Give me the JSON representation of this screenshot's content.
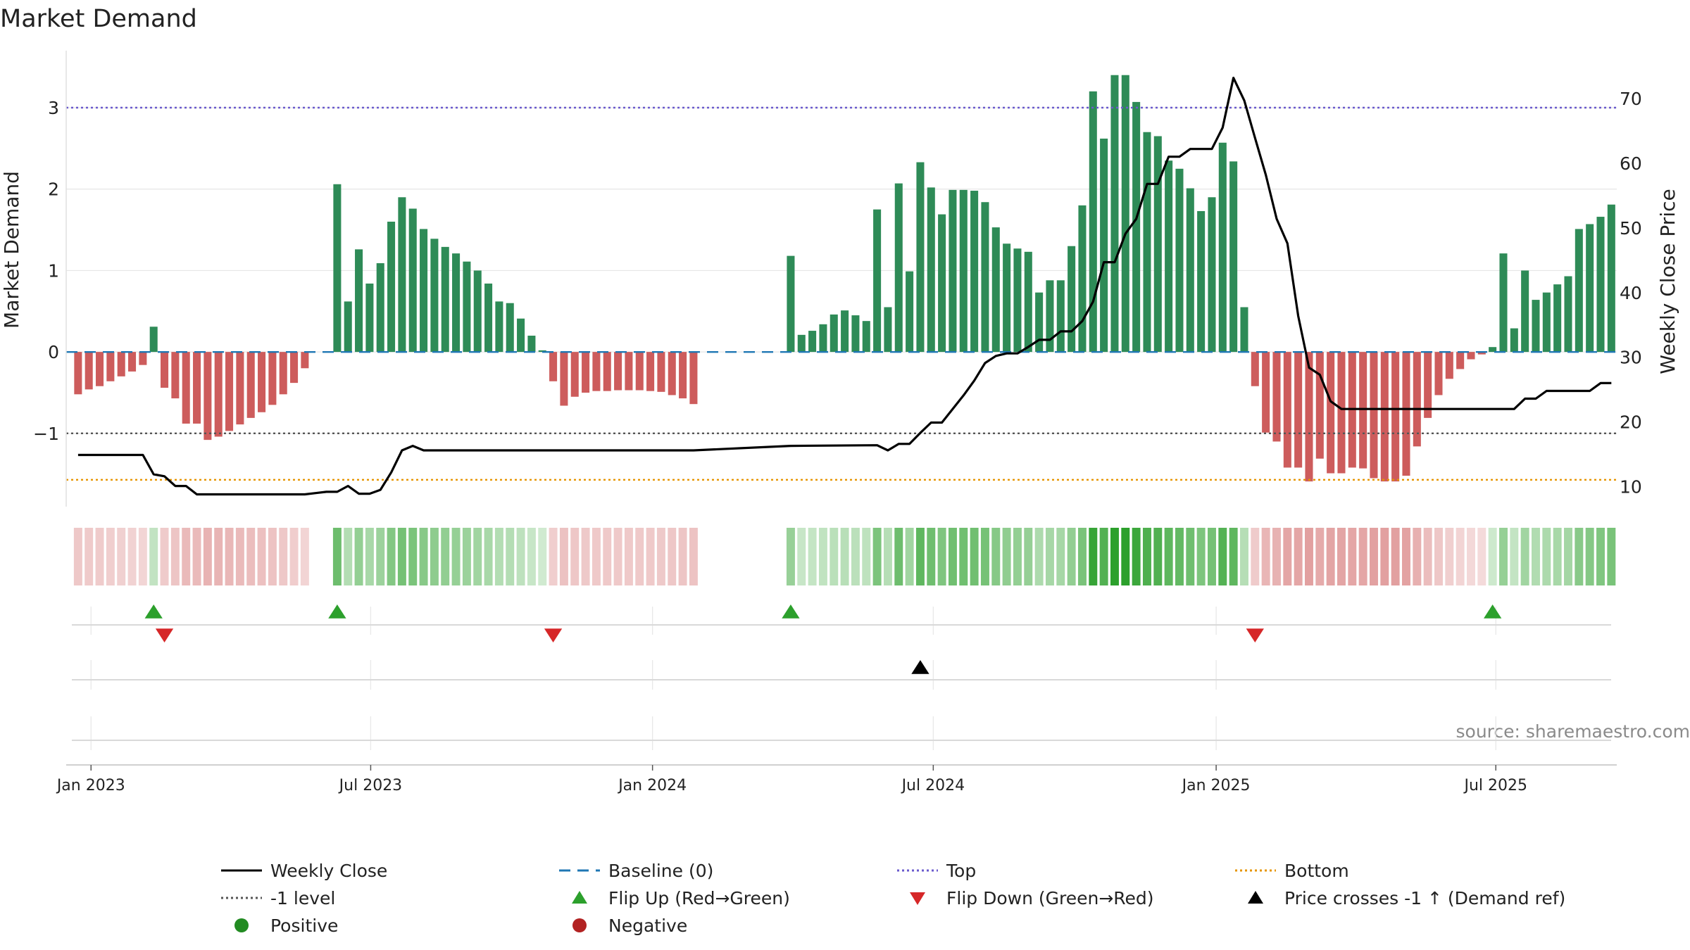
{
  "chart_data": {
    "type": "bar",
    "title": "Market Demand",
    "source": "source: sharemaestro.com",
    "ylabel_left": "Market Demand",
    "ylabel_right": "Weekly Close Price",
    "ylim_left": [
      -1.9,
      3.7
    ],
    "ylim_right": [
      6.9,
      77.4
    ],
    "left_ticks": [
      {
        "v": 3,
        "label": "3"
      },
      {
        "v": 2,
        "label": "2"
      },
      {
        "v": 1,
        "label": "1"
      },
      {
        "v": 0,
        "label": "0"
      },
      {
        "v": -1,
        "label": "−1"
      }
    ],
    "right_ticks": [
      {
        "v": 70,
        "label": "70"
      },
      {
        "v": 60,
        "label": "60"
      },
      {
        "v": 50,
        "label": "50"
      },
      {
        "v": 40,
        "label": "40"
      },
      {
        "v": 30,
        "label": "30"
      },
      {
        "v": 20,
        "label": "20"
      },
      {
        "v": 10,
        "label": "10"
      }
    ],
    "x_ticks": [
      {
        "w": 1.2,
        "label": "Jan 2023"
      },
      {
        "w": 27.1,
        "label": "Jul 2023"
      },
      {
        "w": 53.2,
        "label": "Jan 2024"
      },
      {
        "w": 79.2,
        "label": "Jul 2024"
      },
      {
        "w": 105.4,
        "label": "Jan 2025"
      },
      {
        "w": 131.3,
        "label": "Jul 2025"
      }
    ],
    "week_range": [
      -1.1,
      142.5
    ],
    "reference_lines": {
      "top": 3.0,
      "bottom": -1.57,
      "minus_one": -1.0,
      "baseline": 0
    },
    "demand": [
      [
        0,
        -0.52
      ],
      [
        1,
        -0.46
      ],
      [
        2,
        -0.42
      ],
      [
        3,
        -0.36
      ],
      [
        4,
        -0.3
      ],
      [
        5,
        -0.24
      ],
      [
        6,
        -0.16
      ],
      [
        7,
        0.31
      ],
      [
        8,
        -0.44
      ],
      [
        9,
        -0.57
      ],
      [
        10,
        -0.88
      ],
      [
        11,
        -0.88
      ],
      [
        12,
        -1.08
      ],
      [
        13,
        -1.04
      ],
      [
        14,
        -0.97
      ],
      [
        15,
        -0.89
      ],
      [
        16,
        -0.81
      ],
      [
        17,
        -0.74
      ],
      [
        18,
        -0.65
      ],
      [
        19,
        -0.52
      ],
      [
        20,
        -0.38
      ],
      [
        21,
        -0.2
      ],
      [
        24,
        2.06
      ],
      [
        25,
        0.62
      ],
      [
        26,
        1.26
      ],
      [
        27,
        0.84
      ],
      [
        28,
        1.09
      ],
      [
        29,
        1.6
      ],
      [
        30,
        1.9
      ],
      [
        31,
        1.76
      ],
      [
        32,
        1.51
      ],
      [
        33,
        1.39
      ],
      [
        34,
        1.29
      ],
      [
        35,
        1.21
      ],
      [
        36,
        1.11
      ],
      [
        37,
        1.0
      ],
      [
        38,
        0.84
      ],
      [
        39,
        0.62
      ],
      [
        40,
        0.6
      ],
      [
        41,
        0.41
      ],
      [
        42,
        0.2
      ],
      [
        43,
        0.02
      ],
      [
        44,
        -0.36
      ],
      [
        45,
        -0.66
      ],
      [
        46,
        -0.55
      ],
      [
        47,
        -0.5
      ],
      [
        48,
        -0.48
      ],
      [
        49,
        -0.48
      ],
      [
        50,
        -0.47
      ],
      [
        51,
        -0.47
      ],
      [
        52,
        -0.47
      ],
      [
        53,
        -0.48
      ],
      [
        54,
        -0.49
      ],
      [
        55,
        -0.53
      ],
      [
        56,
        -0.57
      ],
      [
        57,
        -0.64
      ],
      [
        66,
        1.18
      ],
      [
        67,
        0.21
      ],
      [
        68,
        0.26
      ],
      [
        69,
        0.34
      ],
      [
        70,
        0.46
      ],
      [
        71,
        0.51
      ],
      [
        72,
        0.45
      ],
      [
        73,
        0.38
      ],
      [
        74,
        1.75
      ],
      [
        75,
        0.55
      ],
      [
        76,
        2.07
      ],
      [
        77,
        0.99
      ],
      [
        78,
        2.33
      ],
      [
        79,
        2.02
      ],
      [
        80,
        1.69
      ],
      [
        81,
        1.99
      ],
      [
        82,
        1.99
      ],
      [
        83,
        1.98
      ],
      [
        84,
        1.84
      ],
      [
        85,
        1.53
      ],
      [
        86,
        1.33
      ],
      [
        87,
        1.27
      ],
      [
        88,
        1.23
      ],
      [
        89,
        0.73
      ],
      [
        90,
        0.88
      ],
      [
        91,
        0.88
      ],
      [
        92,
        1.3
      ],
      [
        93,
        1.8
      ],
      [
        94,
        3.2
      ],
      [
        95,
        2.62
      ],
      [
        96,
        3.4
      ],
      [
        97,
        3.4
      ],
      [
        98,
        3.07
      ],
      [
        99,
        2.7
      ],
      [
        100,
        2.65
      ],
      [
        101,
        2.35
      ],
      [
        102,
        2.25
      ],
      [
        103,
        2.01
      ],
      [
        104,
        1.73
      ],
      [
        105,
        1.9
      ],
      [
        106,
        2.57
      ],
      [
        107,
        2.34
      ],
      [
        108,
        0.55
      ],
      [
        109,
        -0.42
      ],
      [
        110,
        -0.99
      ],
      [
        111,
        -1.1
      ],
      [
        112,
        -1.42
      ],
      [
        113,
        -1.42
      ],
      [
        114,
        -1.59
      ],
      [
        115,
        -1.31
      ],
      [
        116,
        -1.49
      ],
      [
        117,
        -1.49
      ],
      [
        118,
        -1.42
      ],
      [
        119,
        -1.43
      ],
      [
        120,
        -1.55
      ],
      [
        121,
        -1.59
      ],
      [
        122,
        -1.59
      ],
      [
        123,
        -1.52
      ],
      [
        124,
        -1.16
      ],
      [
        125,
        -0.81
      ],
      [
        126,
        -0.53
      ],
      [
        127,
        -0.33
      ],
      [
        128,
        -0.21
      ],
      [
        129,
        -0.09
      ],
      [
        130,
        -0.03
      ],
      [
        131,
        0.06
      ],
      [
        132,
        1.21
      ],
      [
        133,
        0.29
      ],
      [
        134,
        1.0
      ],
      [
        135,
        0.64
      ],
      [
        136,
        0.73
      ],
      [
        137,
        0.83
      ],
      [
        138,
        0.93
      ],
      [
        139,
        1.51
      ],
      [
        140,
        1.57
      ],
      [
        141,
        1.66
      ],
      [
        142,
        1.81
      ]
    ],
    "weekly_close": [
      [
        0,
        14.9
      ],
      [
        1,
        14.9
      ],
      [
        2,
        14.9
      ],
      [
        3,
        14.9
      ],
      [
        4,
        14.9
      ],
      [
        5,
        14.9
      ],
      [
        6,
        14.9
      ],
      [
        7,
        11.9
      ],
      [
        8,
        11.6
      ],
      [
        9,
        10.1
      ],
      [
        10,
        10.1
      ],
      [
        11,
        8.8
      ],
      [
        12,
        8.8
      ],
      [
        13,
        8.8
      ],
      [
        14,
        8.8
      ],
      [
        15,
        8.8
      ],
      [
        16,
        8.8
      ],
      [
        17,
        8.8
      ],
      [
        18,
        8.8
      ],
      [
        19,
        8.8
      ],
      [
        20,
        8.8
      ],
      [
        21,
        8.8
      ],
      [
        22,
        9.0
      ],
      [
        23,
        9.2
      ],
      [
        24,
        9.2
      ],
      [
        25,
        10.1
      ],
      [
        26,
        8.9
      ],
      [
        27,
        8.9
      ],
      [
        28,
        9.5
      ],
      [
        29,
        12.2
      ],
      [
        30,
        15.6
      ],
      [
        31,
        16.3
      ],
      [
        32,
        15.6
      ],
      [
        33,
        15.6
      ],
      [
        34,
        15.6
      ],
      [
        35,
        15.6
      ],
      [
        36,
        15.6
      ],
      [
        37,
        15.6
      ],
      [
        38,
        15.6
      ],
      [
        39,
        15.6
      ],
      [
        40,
        15.6
      ],
      [
        41,
        15.6
      ],
      [
        42,
        15.6
      ],
      [
        43,
        15.6
      ],
      [
        44,
        15.6
      ],
      [
        45,
        15.6
      ],
      [
        46,
        15.6
      ],
      [
        47,
        15.6
      ],
      [
        48,
        15.6
      ],
      [
        49,
        15.6
      ],
      [
        50,
        15.6
      ],
      [
        51,
        15.6
      ],
      [
        52,
        15.6
      ],
      [
        53,
        15.6
      ],
      [
        54,
        15.6
      ],
      [
        55,
        15.6
      ],
      [
        56,
        15.6
      ],
      [
        57,
        15.6
      ],
      [
        66,
        16.3
      ],
      [
        74,
        16.4
      ],
      [
        75,
        15.6
      ],
      [
        76,
        16.6
      ],
      [
        77,
        16.6
      ],
      [
        78,
        18.3
      ],
      [
        79,
        19.9
      ],
      [
        80,
        19.9
      ],
      [
        81,
        22.0
      ],
      [
        82,
        24.1
      ],
      [
        83,
        26.4
      ],
      [
        84,
        29.1
      ],
      [
        85,
        30.2
      ],
      [
        86,
        30.6
      ],
      [
        87,
        30.6
      ],
      [
        88,
        31.6
      ],
      [
        89,
        32.7
      ],
      [
        90,
        32.7
      ],
      [
        91,
        34.0
      ],
      [
        92,
        34.0
      ],
      [
        93,
        35.6
      ],
      [
        94,
        38.6
      ],
      [
        95,
        44.7
      ],
      [
        96,
        44.7
      ],
      [
        97,
        49.1
      ],
      [
        98,
        51.4
      ],
      [
        99,
        56.8
      ],
      [
        100,
        56.8
      ],
      [
        101,
        61.0
      ],
      [
        102,
        61.0
      ],
      [
        103,
        62.2
      ],
      [
        104,
        62.2
      ],
      [
        105,
        62.2
      ],
      [
        106,
        65.5
      ],
      [
        107,
        73.2
      ],
      [
        108,
        69.7
      ],
      [
        109,
        63.9
      ],
      [
        110,
        58.2
      ],
      [
        111,
        51.4
      ],
      [
        112,
        47.6
      ],
      [
        113,
        36.4
      ],
      [
        114,
        28.4
      ],
      [
        115,
        27.3
      ],
      [
        116,
        23.2
      ],
      [
        117,
        22.0
      ],
      [
        118,
        22.0
      ],
      [
        119,
        22.0
      ],
      [
        120,
        22.0
      ],
      [
        121,
        22.0
      ],
      [
        122,
        22.0
      ],
      [
        123,
        22.0
      ],
      [
        124,
        22.0
      ],
      [
        125,
        22.0
      ],
      [
        126,
        22.0
      ],
      [
        127,
        22.0
      ],
      [
        128,
        22.0
      ],
      [
        129,
        22.0
      ],
      [
        130,
        22.0
      ],
      [
        131,
        22.0
      ],
      [
        132,
        22.0
      ],
      [
        133,
        22.0
      ],
      [
        134,
        23.6
      ],
      [
        135,
        23.6
      ],
      [
        136,
        24.8
      ],
      [
        137,
        24.8
      ],
      [
        138,
        24.8
      ],
      [
        139,
        24.8
      ],
      [
        140,
        24.8
      ],
      [
        141,
        26.0
      ],
      [
        142,
        26.0
      ]
    ],
    "flip_up_weeks": [
      7,
      24,
      66,
      131
    ],
    "flip_down_weeks": [
      8,
      44,
      109
    ],
    "price_cross_weeks": [
      78
    ],
    "colors": {
      "positive_bar": "#2e8b57",
      "negative_bar": "#cd5c5c",
      "weekly_close": "#000000",
      "baseline": "#1f77b4",
      "top": "#6a5acd",
      "bottom": "#e69500",
      "minus_one": "#555555",
      "flip_up": "#2ca02c",
      "flip_down": "#d62728",
      "cross": "#000000",
      "positive_dot": "#228b22",
      "negative_dot": "#b22222"
    },
    "legend": [
      {
        "label": "Weekly Close",
        "kind": "line",
        "color": "#000000",
        "dash": ""
      },
      {
        "label": "Baseline (0)",
        "kind": "line",
        "color": "#1f77b4",
        "dash": "16,10"
      },
      {
        "label": "Top",
        "kind": "line",
        "color": "#6a5acd",
        "dash": "3,4"
      },
      {
        "label": "Bottom",
        "kind": "line",
        "color": "#e69500",
        "dash": "3,4"
      },
      {
        "label": "-1 level",
        "kind": "line",
        "color": "#555555",
        "dash": "3,4"
      },
      {
        "label": "Flip Up (Red→Green)",
        "kind": "tri-up",
        "color": "#2ca02c"
      },
      {
        "label": "Flip Down (Green→Red)",
        "kind": "tri-down",
        "color": "#d62728"
      },
      {
        "label": "Price crosses -1 ↑ (Demand ref)",
        "kind": "tri-up",
        "color": "#000000"
      },
      {
        "label": "Positive",
        "kind": "dot",
        "color": "#228b22"
      },
      {
        "label": "Negative",
        "kind": "dot",
        "color": "#b22222"
      }
    ]
  }
}
